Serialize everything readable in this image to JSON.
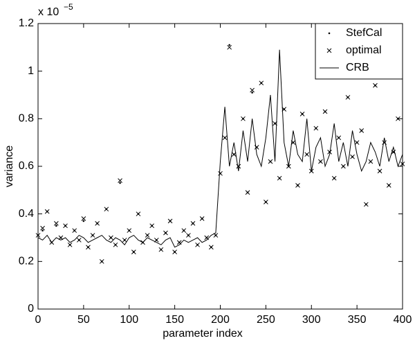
{
  "chart_data": {
    "type": "scatter-line",
    "xlabel": "parameter index",
    "ylabel": "variance",
    "y_scale_base": "x 10",
    "y_scale_exponent": "−5",
    "x": [
      0,
      5,
      10,
      15,
      20,
      25,
      30,
      35,
      40,
      45,
      50,
      55,
      60,
      65,
      70,
      75,
      80,
      85,
      90,
      95,
      100,
      105,
      110,
      115,
      120,
      125,
      130,
      135,
      140,
      145,
      150,
      155,
      160,
      165,
      170,
      175,
      180,
      185,
      190,
      195,
      200,
      205,
      210,
      215,
      220,
      225,
      230,
      235,
      240,
      245,
      250,
      255,
      260,
      265,
      270,
      275,
      280,
      285,
      290,
      295,
      300,
      305,
      310,
      315,
      320,
      325,
      330,
      335,
      340,
      345,
      350,
      355,
      360,
      365,
      370,
      375,
      380,
      385,
      390,
      395,
      400
    ],
    "series": [
      {
        "name": "StefCal",
        "color": "#000000",
        "style": "dot",
        "values": [
          0.31,
          0.33,
          0.41,
          0.28,
          0.35,
          0.3,
          0.35,
          0.27,
          0.33,
          0.29,
          0.37,
          0.26,
          0.31,
          0.36,
          0.2,
          0.42,
          0.3,
          0.27,
          0.53,
          0.29,
          0.33,
          0.24,
          0.4,
          0.28,
          0.31,
          0.35,
          0.29,
          0.25,
          0.32,
          0.37,
          0.24,
          0.28,
          0.33,
          0.31,
          0.36,
          0.27,
          0.38,
          0.3,
          0.26,
          0.31,
          0.57,
          0.72,
          1.11,
          0.65,
          0.6,
          0.8,
          0.49,
          0.91,
          0.68,
          0.95,
          0.45,
          0.62,
          0.78,
          0.55,
          0.84,
          0.6,
          0.7,
          0.52,
          0.82,
          0.65,
          0.58,
          0.76,
          0.62,
          0.83,
          0.66,
          0.55,
          0.72,
          0.6,
          0.89,
          0.64,
          0.7,
          0.75,
          0.44,
          0.62,
          0.94,
          0.58,
          0.7,
          0.52,
          0.66,
          0.8,
          0.61
        ]
      },
      {
        "name": "optimal",
        "color": "#000000",
        "style": "x",
        "values": [
          0.31,
          0.34,
          0.41,
          0.28,
          0.36,
          0.3,
          0.35,
          0.27,
          0.33,
          0.29,
          0.38,
          0.26,
          0.31,
          0.36,
          0.2,
          0.42,
          0.3,
          0.27,
          0.54,
          0.29,
          0.33,
          0.24,
          0.4,
          0.28,
          0.31,
          0.35,
          0.29,
          0.25,
          0.32,
          0.37,
          0.24,
          0.28,
          0.33,
          0.31,
          0.36,
          0.27,
          0.38,
          0.3,
          0.26,
          0.31,
          0.57,
          0.72,
          1.1,
          0.65,
          0.6,
          0.8,
          0.49,
          0.92,
          0.68,
          0.95,
          0.45,
          0.62,
          0.78,
          0.55,
          0.84,
          0.6,
          0.7,
          0.52,
          0.82,
          0.65,
          0.58,
          0.76,
          0.62,
          0.83,
          0.66,
          0.55,
          0.72,
          0.6,
          0.89,
          0.64,
          0.7,
          0.75,
          0.44,
          0.62,
          0.94,
          0.58,
          0.7,
          0.52,
          0.66,
          0.8,
          0.61
        ]
      },
      {
        "name": "CRB",
        "color": "#000000",
        "style": "line",
        "values": [
          0.3,
          0.29,
          0.31,
          0.28,
          0.3,
          0.29,
          0.3,
          0.28,
          0.29,
          0.31,
          0.3,
          0.28,
          0.29,
          0.3,
          0.31,
          0.29,
          0.28,
          0.3,
          0.29,
          0.27,
          0.3,
          0.31,
          0.29,
          0.28,
          0.3,
          0.29,
          0.28,
          0.27,
          0.29,
          0.3,
          0.26,
          0.27,
          0.29,
          0.28,
          0.29,
          0.3,
          0.28,
          0.29,
          0.31,
          0.32,
          0.62,
          0.85,
          0.6,
          0.7,
          0.58,
          0.75,
          0.62,
          0.8,
          0.65,
          0.6,
          0.72,
          0.9,
          0.62,
          1.09,
          0.7,
          0.6,
          0.75,
          0.65,
          0.62,
          0.8,
          0.58,
          0.68,
          0.72,
          0.6,
          0.65,
          0.78,
          0.62,
          0.7,
          0.6,
          0.75,
          0.65,
          0.58,
          0.62,
          0.7,
          0.66,
          0.6,
          0.72,
          0.62,
          0.68,
          0.6,
          0.65
        ]
      }
    ],
    "xlim": [
      0,
      400
    ],
    "xticks": [
      0,
      50,
      100,
      150,
      200,
      250,
      300,
      350,
      400
    ],
    "ylim": [
      0,
      1.2
    ],
    "yticks": [
      0,
      0.2,
      0.4,
      0.6,
      0.8,
      1,
      1.2
    ],
    "legend": "upper-right"
  }
}
